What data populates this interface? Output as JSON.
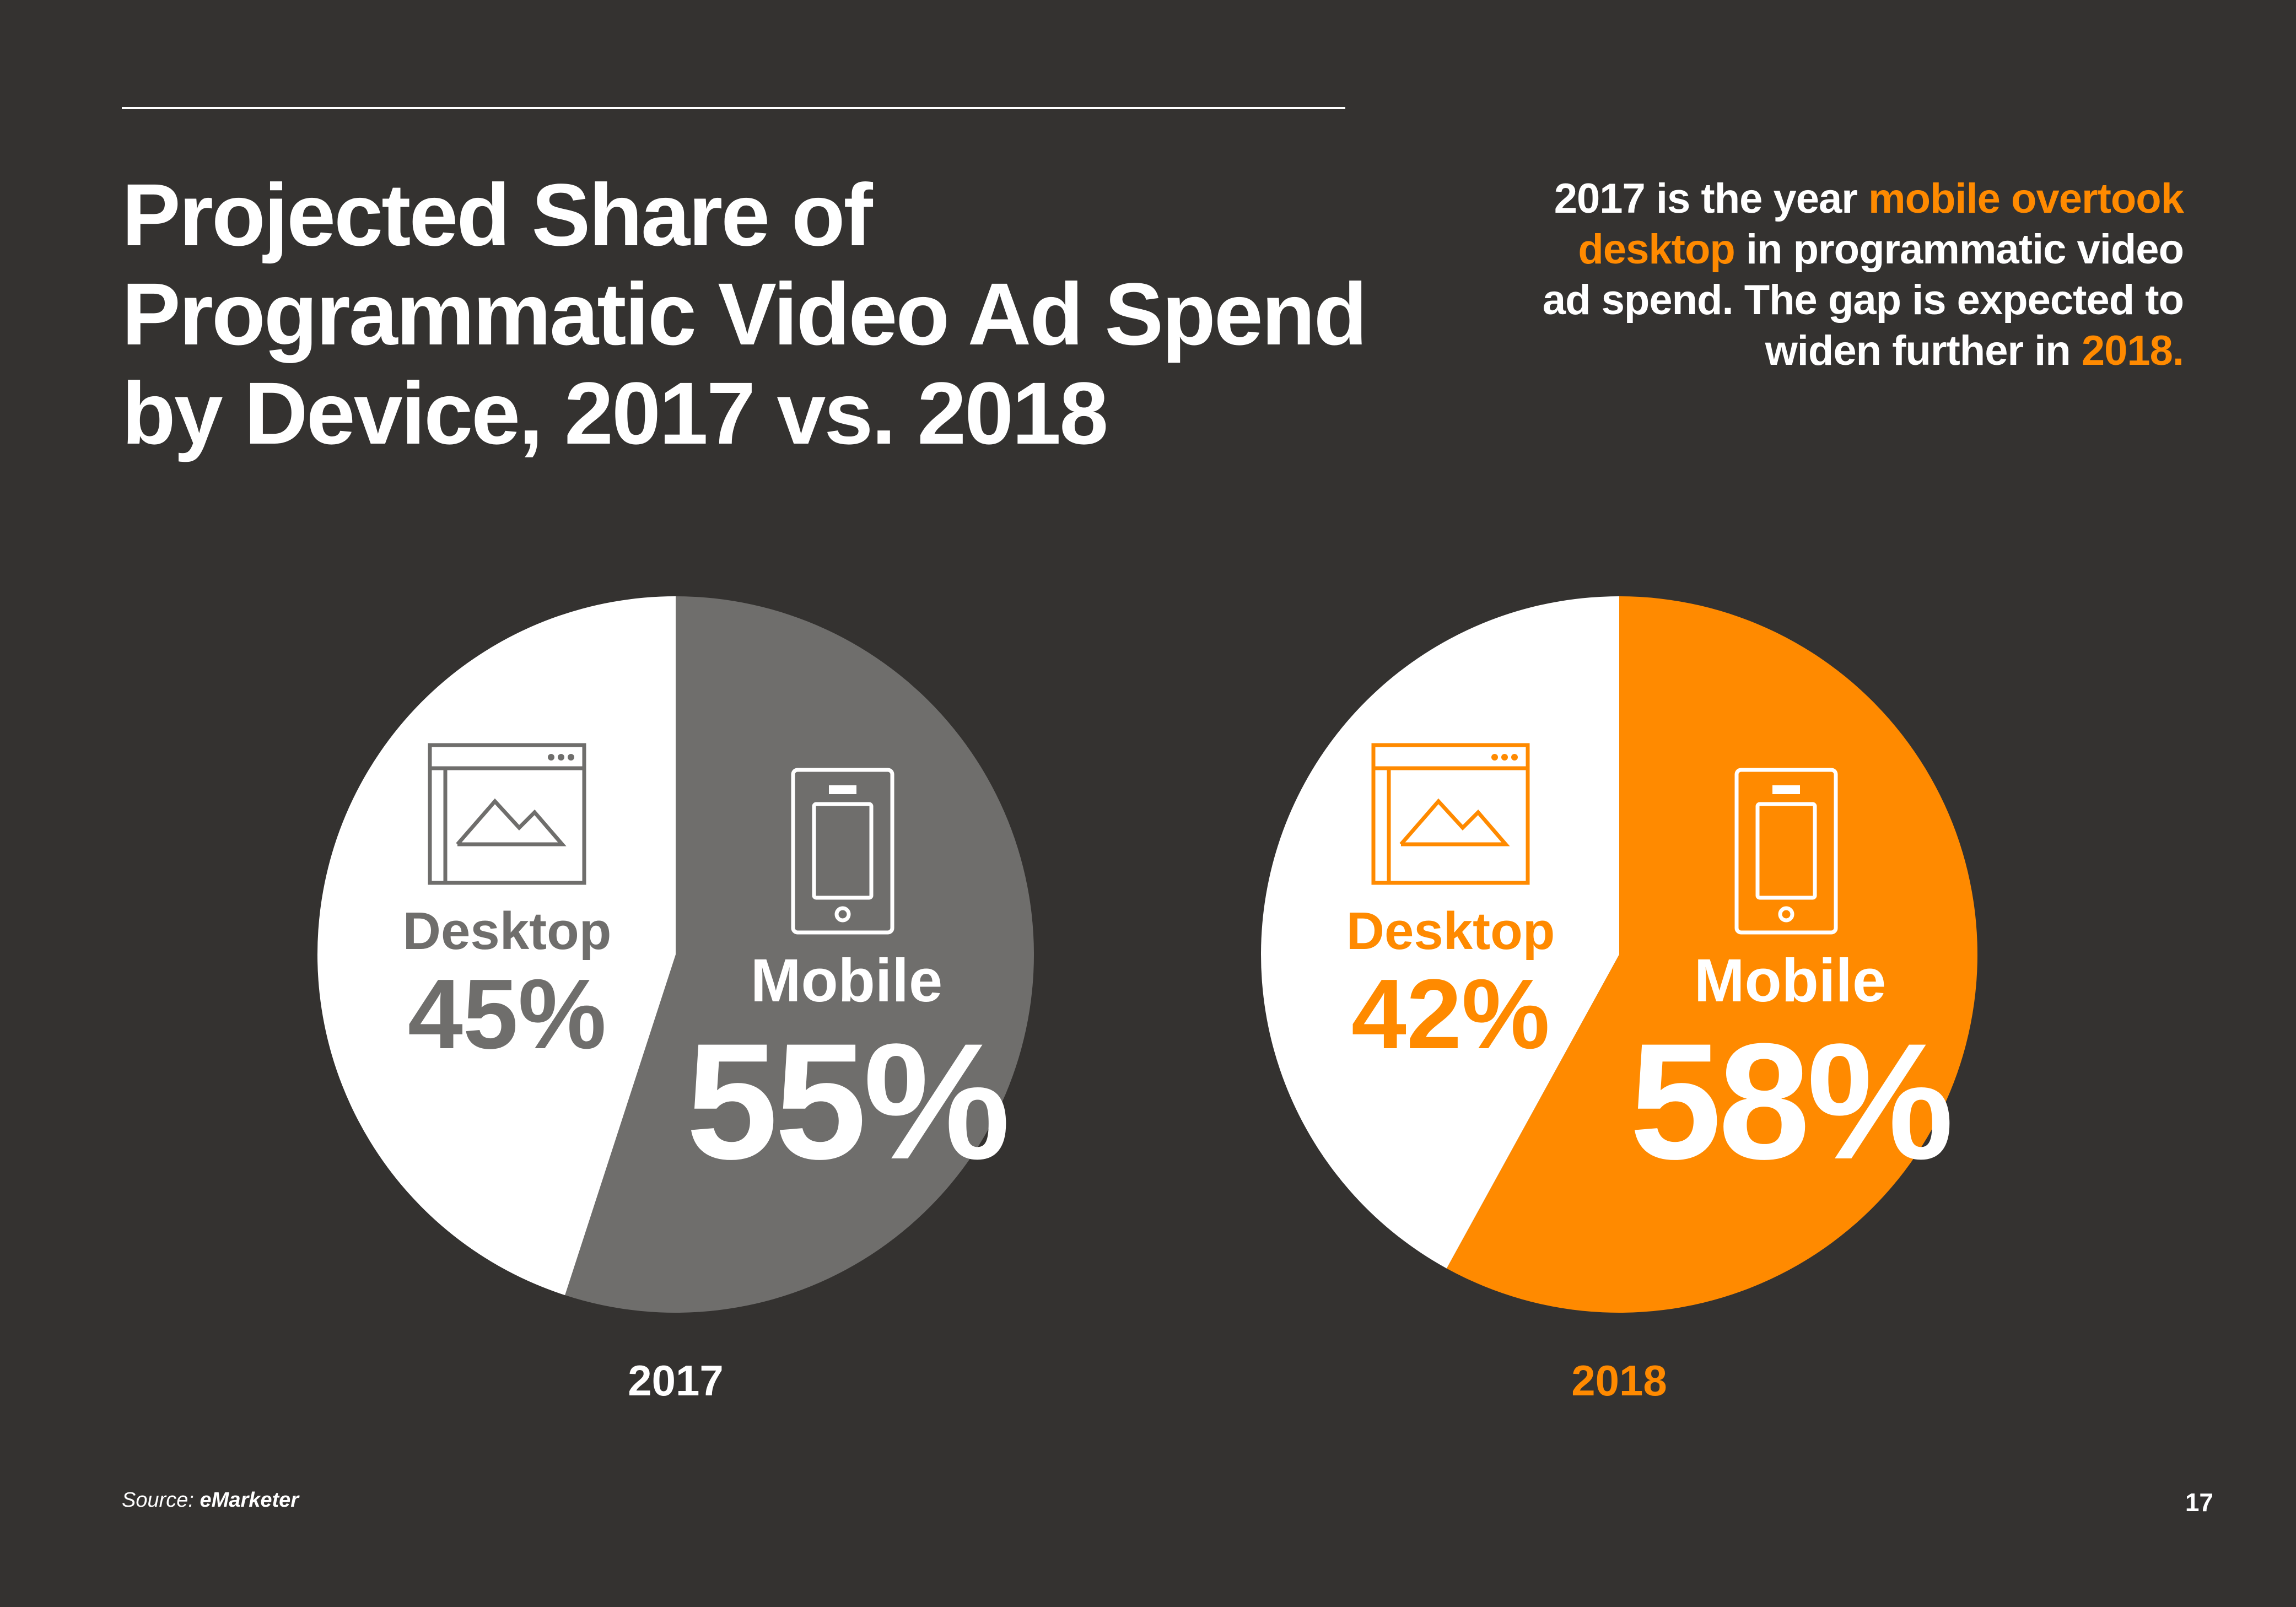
{
  "title": {
    "line1": "Projected Share of",
    "line2": "Programmatic Video Ad Spend",
    "line3": "by Device, 2017 vs. 2018"
  },
  "callout": {
    "p1": "2017 is the year ",
    "p2": "mobile overtook desktop",
    "p3": " in programmatic video ad spend. The gap is expected to widen further in ",
    "p4": "2018."
  },
  "colors": {
    "background": "#343230",
    "white": "#ffffff",
    "grey": "#6f6e6c",
    "orange": "#ff8a00"
  },
  "chart_data": [
    {
      "type": "pie",
      "year": "2017",
      "accent": "#6f6e6c",
      "slices": [
        {
          "label": "Mobile",
          "value": 55,
          "value_label": "55%",
          "color": "#6f6e6c",
          "icon": "mobile-phone-icon"
        },
        {
          "label": "Desktop",
          "value": 45,
          "value_label": "45%",
          "color": "#ffffff",
          "icon": "desktop-browser-icon"
        }
      ]
    },
    {
      "type": "pie",
      "year": "2018",
      "accent": "#ff8a00",
      "slices": [
        {
          "label": "Mobile",
          "value": 58,
          "value_label": "58%",
          "color": "#ff8a00",
          "icon": "mobile-phone-icon"
        },
        {
          "label": "Desktop",
          "value": 42,
          "value_label": "42%",
          "color": "#ffffff",
          "icon": "desktop-browser-icon"
        }
      ]
    }
  ],
  "source": {
    "prefix": "Source: ",
    "name": "eMarketer"
  },
  "page_number": "17"
}
